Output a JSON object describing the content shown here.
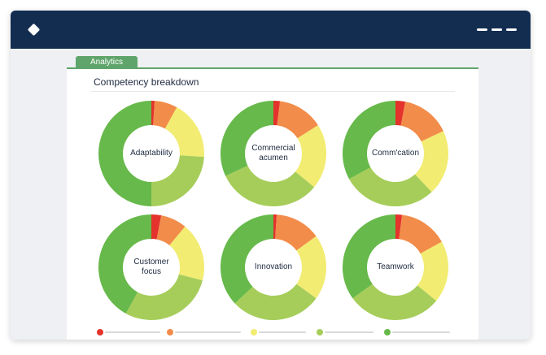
{
  "panel": {
    "tab_label": "Analytics",
    "section_title": "Competency breakdown"
  },
  "colors": {
    "titlebar": "#132d51",
    "accent": "#5fa56b",
    "red": "#e3332c",
    "orange": "#f28c4a",
    "yellow": "#f2ec72",
    "light_green": "#a6cd5a",
    "green": "#66b94a"
  },
  "legend": [
    {
      "color": "red"
    },
    {
      "color": "orange"
    },
    {
      "color": "yellow"
    },
    {
      "color": "light_green"
    },
    {
      "color": "green"
    }
  ],
  "chart_data": {
    "type": "donut",
    "series_order": [
      "red",
      "orange",
      "yellow",
      "light_green",
      "green"
    ],
    "charts": [
      {
        "label": "Adaptability",
        "values": [
          1,
          7,
          18,
          24,
          50
        ]
      },
      {
        "label": "Commercial acumen",
        "values": [
          2,
          14,
          20,
          32,
          32
        ]
      },
      {
        "label": "Comm'cation",
        "values": [
          3,
          15,
          20,
          29,
          33
        ]
      },
      {
        "label": "Customer focus",
        "values": [
          3,
          8,
          18,
          29,
          42
        ]
      },
      {
        "label": "Innovation",
        "values": [
          1,
          14,
          20,
          28,
          37
        ]
      },
      {
        "label": "Teamwork",
        "values": [
          2,
          15,
          19,
          29,
          35
        ]
      }
    ]
  }
}
